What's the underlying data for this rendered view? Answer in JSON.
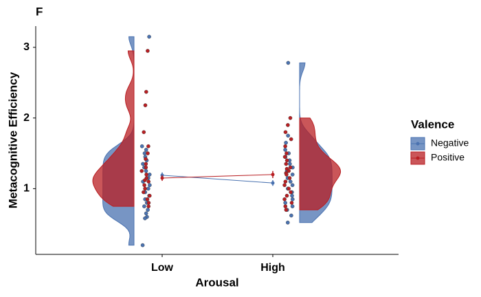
{
  "chart_data": {
    "type": "raincloud",
    "title": "F",
    "x_label": "Arousal",
    "y_label": "Metacognitive Efficiency",
    "categories": [
      "Low",
      "High"
    ],
    "legend_title": "Valence",
    "ylim": [
      0.07,
      3.3
    ],
    "yticks": [
      1,
      2,
      3
    ],
    "series": [
      {
        "name": "Negative",
        "color": "#4a72b0",
        "means": [
          1.19,
          1.08
        ],
        "errors": [
          0.04,
          0.04
        ],
        "points": [
          [
            3.15,
            1.6,
            1.55,
            1.5,
            1.45,
            1.4,
            1.35,
            1.3,
            1.25,
            1.2,
            1.15,
            1.1,
            1.05,
            1.0,
            0.95,
            0.9,
            0.85,
            0.8,
            0.75,
            0.7,
            0.65,
            0.6,
            0.58,
            0.2
          ],
          [
            2.78,
            1.75,
            1.65,
            1.55,
            1.5,
            1.45,
            1.4,
            1.35,
            1.3,
            1.25,
            1.2,
            1.15,
            1.1,
            1.05,
            1.0,
            0.95,
            0.9,
            0.85,
            0.8,
            0.75,
            0.7,
            0.62,
            0.52
          ]
        ]
      },
      {
        "name": "Positive",
        "color": "#b81e22",
        "means": [
          1.15,
          1.2
        ],
        "errors": [
          0.04,
          0.05
        ],
        "points": [
          [
            2.95,
            2.37,
            2.18,
            1.8,
            1.6,
            1.5,
            1.42,
            1.35,
            1.3,
            1.25,
            1.2,
            1.15,
            1.12,
            1.1,
            1.05,
            1.0,
            0.95,
            0.9,
            0.85,
            0.8,
            0.75
          ],
          [
            2.0,
            1.9,
            1.8,
            1.7,
            1.6,
            1.5,
            1.45,
            1.4,
            1.35,
            1.3,
            1.28,
            1.25,
            1.22,
            1.2,
            1.15,
            1.1,
            1.05,
            1.0,
            0.95,
            0.9,
            0.85,
            0.8,
            0.75,
            0.7
          ]
        ]
      }
    ]
  }
}
